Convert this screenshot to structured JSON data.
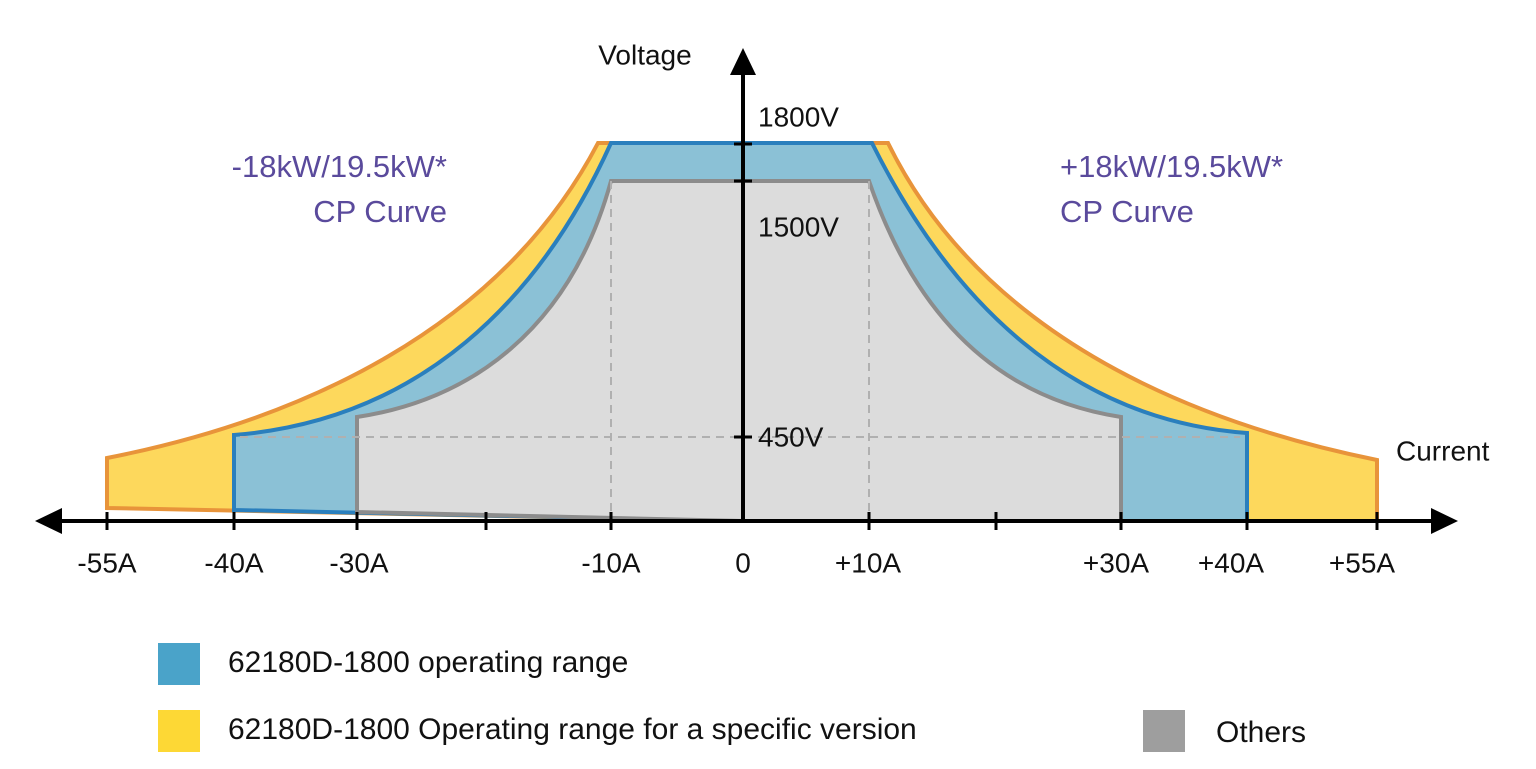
{
  "axes": {
    "y_label": "Voltage",
    "x_label": "Current",
    "y_ticks": [
      "1800V",
      "1500V",
      "450V"
    ],
    "x_ticks": [
      "-55A",
      "-40A",
      "-30A",
      "-10A",
      "0",
      "+10A",
      "+30A",
      "+40A",
      "+55A"
    ]
  },
  "annotations": [
    "-18kW/19.5kW*",
    "CP Curve",
    "+18kW/19.5kW*",
    "CP Curve"
  ],
  "legend": [
    "62180D-1800 operating range",
    "62180D-1800 Operating range for a specific version",
    "Others"
  ]
}
